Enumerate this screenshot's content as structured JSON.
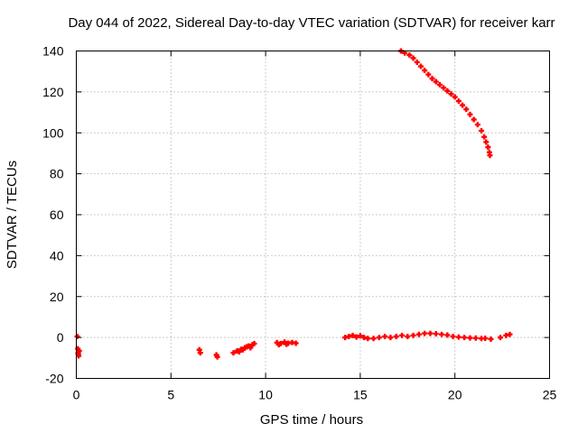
{
  "chart_data": {
    "type": "scatter",
    "title": "Day 044 of 2022, Sidereal Day-to-day VTEC variation (SDTVAR) for receiver karr",
    "xlabel": "GPS time / hours",
    "ylabel": "SDTVAR / TECUs",
    "xlim": [
      0,
      25
    ],
    "ylim": [
      -20,
      140
    ],
    "xticks": [
      0,
      5,
      10,
      15,
      20,
      25
    ],
    "yticks": [
      -20,
      0,
      20,
      40,
      60,
      80,
      100,
      120,
      140
    ],
    "grid": true,
    "marker": "+",
    "color": "#ff0000",
    "series": [
      {
        "points": [
          [
            0.05,
            0.5
          ],
          [
            0.08,
            -5.5
          ],
          [
            0.1,
            -7.5
          ],
          [
            0.12,
            -9
          ],
          [
            0.15,
            -6.5
          ],
          [
            0.1,
            -8
          ],
          [
            6.5,
            -6
          ],
          [
            6.55,
            -7.5
          ],
          [
            7.4,
            -8.5
          ],
          [
            7.45,
            -9.5
          ],
          [
            8.3,
            -7.5
          ],
          [
            8.5,
            -6.5
          ],
          [
            8.7,
            -5.8
          ],
          [
            8.9,
            -5
          ],
          [
            9.1,
            -4.2
          ],
          [
            9.3,
            -3.5
          ],
          [
            9.4,
            -3
          ],
          [
            8.6,
            -7
          ],
          [
            8.8,
            -6
          ],
          [
            9.0,
            -4.6
          ],
          [
            9.2,
            -5
          ],
          [
            10.6,
            -2.5
          ],
          [
            10.8,
            -3
          ],
          [
            11.0,
            -2.2
          ],
          [
            11.2,
            -2.8
          ],
          [
            11.4,
            -2.4
          ],
          [
            11.6,
            -2.8
          ],
          [
            10.7,
            -3.5
          ],
          [
            11.1,
            -3.3
          ],
          [
            14.2,
            0
          ],
          [
            14.4,
            0.5
          ],
          [
            14.6,
            1
          ],
          [
            14.8,
            0.2
          ],
          [
            15.0,
            0.8
          ],
          [
            15.2,
            0
          ],
          [
            15.4,
            -0.5
          ],
          [
            15.7,
            -0.5
          ],
          [
            16.0,
            0
          ],
          [
            16.3,
            0.5
          ],
          [
            16.6,
            0
          ],
          [
            16.9,
            0.5
          ],
          [
            17.2,
            1
          ],
          [
            17.5,
            0.5
          ],
          [
            17.8,
            1
          ],
          [
            18.1,
            1.5
          ],
          [
            18.4,
            2
          ],
          [
            18.7,
            2
          ],
          [
            19.0,
            1.8
          ],
          [
            19.3,
            1.5
          ],
          [
            19.6,
            1.2
          ],
          [
            19.9,
            0.5
          ],
          [
            20.2,
            0.2
          ],
          [
            20.5,
            0
          ],
          [
            20.8,
            -0.2
          ],
          [
            21.1,
            -0.3
          ],
          [
            21.4,
            -0.5
          ],
          [
            21.6,
            -0.4
          ],
          [
            21.9,
            -0.8
          ],
          [
            22.4,
            0
          ],
          [
            22.7,
            1
          ],
          [
            22.9,
            1.5
          ]
        ]
      },
      {
        "points": [
          [
            17.15,
            140
          ],
          [
            17.35,
            139
          ],
          [
            17.6,
            138
          ],
          [
            17.8,
            136.5
          ],
          [
            18.0,
            134.5
          ],
          [
            18.2,
            132.5
          ],
          [
            18.4,
            130.5
          ],
          [
            18.6,
            128.5
          ],
          [
            18.8,
            126.5
          ],
          [
            19.0,
            125
          ],
          [
            19.2,
            123.5
          ],
          [
            19.4,
            122
          ],
          [
            19.6,
            120.5
          ],
          [
            19.8,
            119
          ],
          [
            20.0,
            117.5
          ],
          [
            20.2,
            115.5
          ],
          [
            20.4,
            113.5
          ],
          [
            20.6,
            111.5
          ],
          [
            20.8,
            109
          ],
          [
            21.0,
            106.5
          ],
          [
            21.2,
            104
          ],
          [
            21.4,
            101
          ],
          [
            21.55,
            98
          ],
          [
            21.65,
            95.5
          ],
          [
            21.75,
            93
          ],
          [
            21.82,
            90.5
          ],
          [
            21.85,
            89
          ]
        ]
      }
    ]
  }
}
